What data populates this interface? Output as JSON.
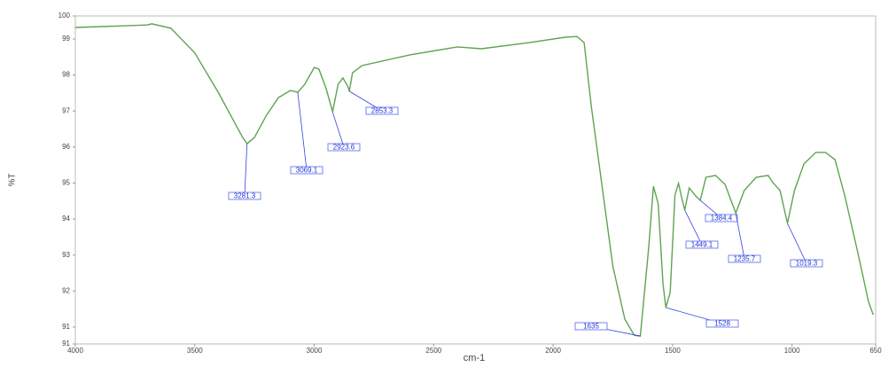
{
  "chart_data": {
    "type": "line",
    "xlabel": "cm-1",
    "ylabel": "%T",
    "x": [
      4000,
      3700,
      3680,
      3600,
      3500,
      3400,
      3300,
      3281,
      3250,
      3200,
      3150,
      3100,
      3069,
      3040,
      3000,
      2980,
      2950,
      2923,
      2900,
      2880,
      2860,
      2853,
      2840,
      2800,
      2600,
      2400,
      2300,
      2100,
      1950,
      1900,
      1870,
      1840,
      1800,
      1750,
      1700,
      1660,
      1635,
      1600,
      1580,
      1560,
      1540,
      1528,
      1510,
      1490,
      1475,
      1460,
      1449,
      1430,
      1400,
      1384,
      1360,
      1320,
      1280,
      1250,
      1235,
      1200,
      1150,
      1100,
      1080,
      1050,
      1019,
      990,
      950,
      900,
      860,
      820,
      780,
      720,
      680,
      660
    ],
    "values": [
      99.32,
      99.39,
      99.42,
      99.3,
      98.61,
      97.5,
      96.27,
      96.09,
      96.27,
      96.88,
      97.37,
      97.57,
      97.52,
      97.74,
      98.21,
      98.16,
      97.62,
      96.98,
      97.74,
      97.92,
      97.69,
      97.55,
      98.06,
      98.26,
      98.56,
      98.78,
      98.73,
      98.9,
      99.05,
      99.07,
      98.9,
      97.13,
      95.16,
      92.69,
      91.22,
      90.77,
      90.75,
      93.19,
      94.91,
      94.42,
      92.2,
      91.54,
      91.96,
      94.67,
      94.99,
      94.54,
      94.25,
      94.86,
      94.62,
      94.52,
      95.16,
      95.21,
      94.96,
      94.42,
      94.17,
      94.79,
      95.16,
      95.21,
      95.01,
      94.79,
      93.88,
      94.79,
      95.53,
      95.85,
      95.85,
      95.65,
      94.67,
      92.94,
      91.71,
      91.34
    ],
    "color": "#5fa352",
    "xlim": [
      4000,
      650
    ],
    "xticks": [
      4000,
      3500,
      3000,
      2500,
      2000,
      1500,
      1000,
      650
    ],
    "ylim": [
      90.53,
      99.64
    ],
    "yticks": [
      {
        "value": 90.53,
        "label": "91"
      },
      91,
      92,
      93,
      94,
      95,
      96,
      97,
      98,
      99,
      {
        "value": 99.64,
        "label": "100"
      }
    ],
    "annotations": [
      {
        "x": 3281.3,
        "y": 96.09,
        "label": "3281.3"
      },
      {
        "x": 3069.1,
        "y": 97.52,
        "label": "3069.1"
      },
      {
        "x": 2923.6,
        "y": 96.98,
        "label": "2923.6"
      },
      {
        "x": 2853.3,
        "y": 97.55,
        "label": "2853.3"
      },
      {
        "x": 1635,
        "y": 90.75,
        "label": "1635"
      },
      {
        "x": 1528,
        "y": 91.54,
        "label": "1528"
      },
      {
        "x": 1449.1,
        "y": 94.25,
        "label": "1449.1"
      },
      {
        "x": 1384.4,
        "y": 94.52,
        "label": "1384.4"
      },
      {
        "x": 1235.7,
        "y": 94.17,
        "label": "1235.7"
      },
      {
        "x": 1019.3,
        "y": 93.88,
        "label": "1019.3"
      }
    ]
  }
}
